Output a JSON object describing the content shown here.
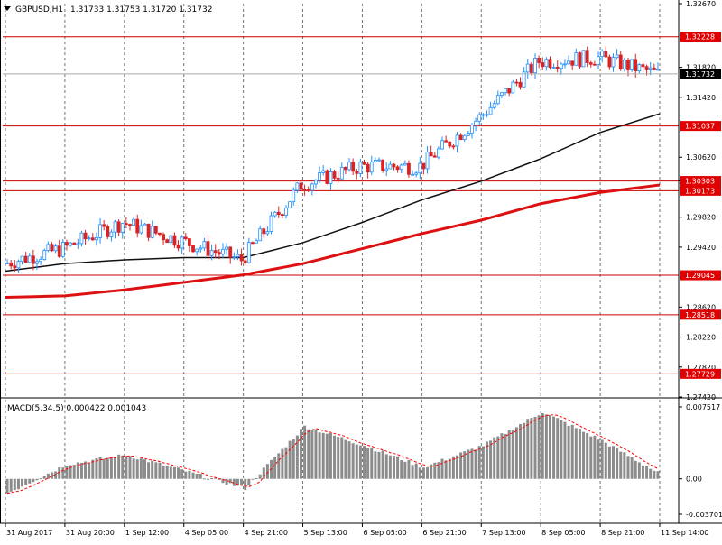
{
  "header": {
    "symbol": "GBPUSD,H1",
    "ohlc": "1.31733 1.31753 1.31720 1.31732",
    "menu_icon": "triangle-down-icon"
  },
  "colors": {
    "background": "#ffffff",
    "text": "#000000",
    "bull": "#1e90ff",
    "bear": "#dd2222",
    "ma_slow": "#dd1111",
    "ma_fast": "#111111",
    "level_line": "#cc0000",
    "level_label_bg": "#e00000",
    "grid": "#000000",
    "macd_hist": "#8c8c8c",
    "macd_signal": "#ff0000",
    "current_price_bg": "#000000"
  },
  "price_panel": {
    "ylim": [
      1.2742,
      1.3267
    ],
    "axis_ticks": [
      "1.32670",
      "1.31820",
      "1.31420",
      "1.30620",
      "1.30303",
      "1.29820",
      "1.29420",
      "1.28620",
      "1.28220",
      "1.27820",
      "1.27420"
    ],
    "levels": [
      "1.32228",
      "1.31037",
      "1.30303",
      "1.30173",
      "1.29045",
      "1.28518",
      "1.27729"
    ],
    "current_price": "1.31732"
  },
  "macd_panel": {
    "label": "MACD(5,34,5) 0.000422 0.001043",
    "axis_ticks": [
      "0.007517",
      "0.00",
      "-0.003701"
    ],
    "ylim": [
      -0.003701,
      0.007517
    ]
  },
  "time_axis": {
    "labels": [
      "31 Aug 2017",
      "31 Aug 20:00",
      "1 Sep 12:00",
      "4 Sep 05:00",
      "4 Sep 21:00",
      "5 Sep 13:00",
      "6 Sep 05:00",
      "6 Sep 21:00",
      "7 Sep 13:00",
      "8 Sep 05:00",
      "8 Sep 21:00",
      "11 Sep 14:00"
    ]
  },
  "chart_data": {
    "type": "line",
    "x": [
      "31 Aug 2017",
      "31 Aug 20:00",
      "1 Sep 12:00",
      "4 Sep 05:00",
      "4 Sep 21:00",
      "5 Sep 13:00",
      "6 Sep 05:00",
      "6 Sep 21:00",
      "7 Sep 13:00",
      "8 Sep 05:00",
      "8 Sep 21:00",
      "11 Sep 14:00"
    ],
    "series": [
      {
        "values": [
          1.292,
          1.294,
          1.2975,
          1.295,
          1.2925,
          1.3025,
          1.305,
          1.305,
          1.3115,
          1.319,
          1.3195,
          1.3173
        ]
      },
      {
        "values": [
          1.291,
          1.292,
          1.2925,
          1.2928,
          1.2928,
          1.2948,
          1.2975,
          1.3005,
          1.303,
          1.306,
          1.3095,
          1.312
        ]
      },
      {
        "values": [
          1.2875,
          1.2877,
          1.2885,
          1.2895,
          1.2905,
          1.292,
          1.294,
          1.296,
          1.2978,
          1.3,
          1.3015,
          1.3025
        ]
      }
    ],
    "ylim": [
      1.2742,
      1.3267
    ],
    "macd": [
      -0.0015,
      0.0015,
      0.0025,
      0.0008,
      -0.001,
      0.0055,
      0.0035,
      0.0012,
      0.0035,
      0.007,
      0.004,
      0.0004
    ]
  }
}
